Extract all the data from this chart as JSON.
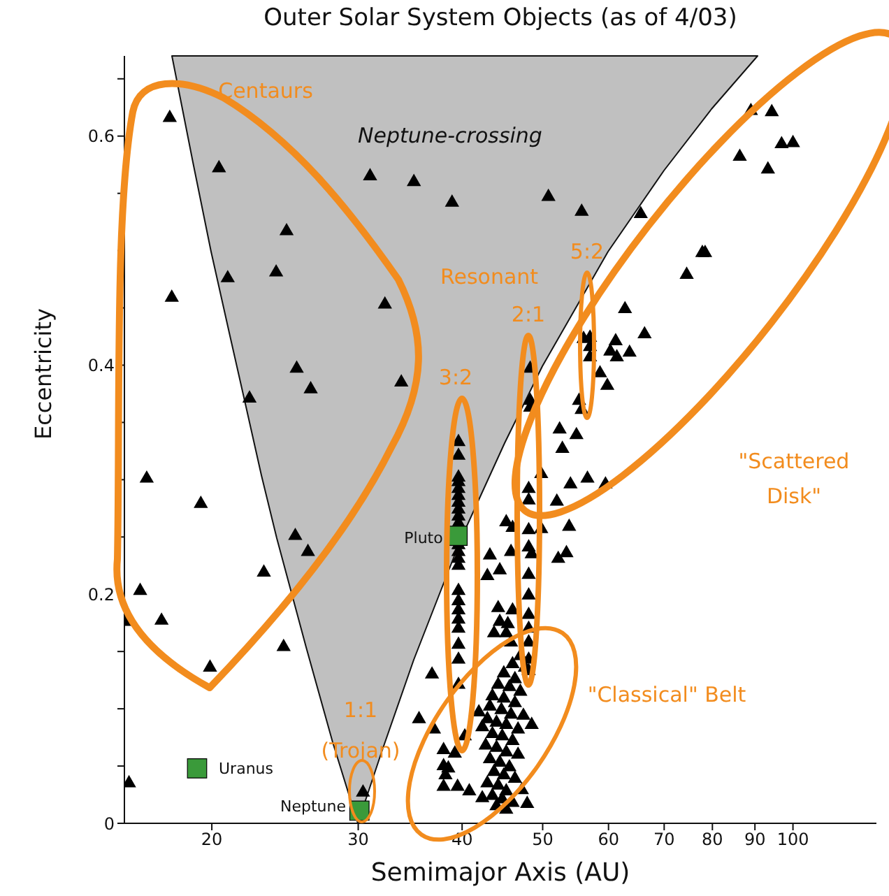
{
  "chart_data": {
    "type": "scatter",
    "title": "Outer Solar System Objects (as of 4/03)",
    "xlabel": "Semimajor Axis (AU)",
    "ylabel": "Eccentricity",
    "log": "x",
    "xlim": [
      15.7,
      126
    ],
    "xticks": [
      20,
      30,
      40,
      50,
      60,
      70,
      80,
      90,
      100
    ],
    "ylim": [
      0,
      0.67
    ],
    "yticks": [
      0,
      {
        "value": 0.05,
        "label": null
      },
      {
        "value": 0.1,
        "label": null
      },
      {
        "value": 0.15,
        "label": null
      },
      0.2,
      {
        "value": 0.25,
        "label": null
      },
      {
        "value": 0.3,
        "label": null
      },
      {
        "value": 0.35,
        "label": null
      },
      0.4,
      {
        "value": 0.45,
        "label": null
      },
      {
        "value": 0.5,
        "label": null
      },
      {
        "value": 0.55,
        "label": null
      },
      0.6,
      {
        "value": 0.65,
        "label": null
      }
    ],
    "grid": false,
    "legend": false,
    "series": [
      {
        "color": "#000000",
        "marker": "triangle",
        "x": [
          17.8,
          20.4,
          31.0,
          35.0,
          38.9,
          24.6,
          20.9,
          23.9,
          17.9,
          32.3,
          25.3,
          26.3,
          22.2,
          33.8,
          50.8,
          55.7,
          65.6,
          89.0,
          94.3,
          96.9,
          100,
          86.3,
          93.3,
          77.8,
          78.4,
          74.5,
          62.8,
          66.3,
          61.2,
          60.3,
          61.4,
          63.6,
          57.0,
          57.0,
          57.0,
          56.0,
          58.6,
          59.8,
          48.3,
          48.3,
          48.3,
          55.3,
          55.7,
          52.4,
          54.9,
          52.8,
          16.7,
          19.4,
          25.2,
          26.1,
          23.1,
          16.4,
          15.7,
          17.4,
          24.4,
          19.9,
          15.9,
          30.4,
          36.8,
          35.5,
          37.0,
          38.0,
          38.0,
          38.2,
          39.6,
          39.6,
          39.6,
          39.6,
          39.6,
          39.6,
          39.6,
          39.6,
          39.6,
          39.6,
          39.6,
          39.6,
          39.6,
          39.6,
          39.6,
          39.6,
          39.6,
          39.6,
          39.6,
          39.6,
          39.6,
          39.6,
          48.1,
          48.1,
          48.1,
          48.1,
          48.1,
          48.1,
          48.1,
          48.1,
          48.1,
          48.1,
          48.1,
          56.6,
          59.5,
          54.0,
          52.0,
          49.8,
          53.8,
          49.8,
          45.2,
          46.0,
          45.8,
          48.5,
          53.4,
          52.2,
          43.2,
          44.4,
          42.9,
          44.2,
          46.0,
          44.4,
          45.4,
          43.7,
          45.8,
          45.2,
          39.2,
          40.3,
          38.5,
          38.0,
          39.5,
          40.8,
          41.9,
          42.3,
          48.5,
          47.9,
          47.0,
          46.0,
          47.6,
          44.9,
          46.3,
          44.2,
          45.6,
          47.0,
          43.5,
          44.9,
          46.3,
          43.2,
          44.6,
          45.8,
          47.4,
          42.9,
          44.0,
          45.2,
          46.7,
          43.5,
          44.7,
          46.0,
          42.7,
          44.0,
          45.2,
          46.7,
          43.2,
          44.4,
          45.6,
          43.7,
          44.9,
          46.3,
          42.9,
          44.2,
          45.2,
          43.5,
          44.7,
          46.0,
          44.0,
          45.2,
          42.3,
          47.2
        ],
        "values": [
          0.616,
          0.572,
          0.565,
          0.56,
          0.542,
          0.517,
          0.476,
          0.481,
          0.459,
          0.453,
          0.397,
          0.379,
          0.371,
          0.385,
          0.547,
          0.534,
          0.532,
          0.622,
          0.621,
          0.593,
          0.594,
          0.582,
          0.571,
          0.498,
          0.498,
          0.479,
          0.449,
          0.427,
          0.421,
          0.412,
          0.407,
          0.411,
          0.424,
          0.416,
          0.407,
          0.423,
          0.393,
          0.382,
          0.397,
          0.369,
          0.363,
          0.369,
          0.361,
          0.344,
          0.339,
          0.327,
          0.301,
          0.279,
          0.251,
          0.237,
          0.219,
          0.203,
          0.176,
          0.177,
          0.154,
          0.136,
          0.035,
          0.027,
          0.13,
          0.091,
          0.082,
          0.064,
          0.05,
          0.042,
          0.333,
          0.321,
          0.302,
          0.298,
          0.292,
          0.286,
          0.28,
          0.274,
          0.268,
          0.262,
          0.243,
          0.237,
          0.231,
          0.225,
          0.203,
          0.194,
          0.186,
          0.178,
          0.17,
          0.156,
          0.143,
          0.121,
          0.292,
          0.282,
          0.256,
          0.241,
          0.217,
          0.199,
          0.182,
          0.17,
          0.158,
          0.143,
          0.133,
          0.301,
          0.296,
          0.296,
          0.281,
          0.305,
          0.259,
          0.257,
          0.263,
          0.258,
          0.237,
          0.235,
          0.236,
          0.231,
          0.234,
          0.221,
          0.216,
          0.188,
          0.186,
          0.176,
          0.174,
          0.166,
          0.158,
          0.166,
          0.061,
          0.076,
          0.048,
          0.032,
          0.032,
          0.028,
          0.097,
          0.084,
          0.086,
          0.017,
          0.146,
          0.139,
          0.136,
          0.131,
          0.126,
          0.121,
          0.119,
          0.115,
          0.111,
          0.109,
          0.105,
          0.102,
          0.099,
          0.095,
          0.094,
          0.091,
          0.088,
          0.086,
          0.082,
          0.078,
          0.076,
          0.072,
          0.068,
          0.066,
          0.062,
          0.06,
          0.056,
          0.053,
          0.049,
          0.045,
          0.042,
          0.039,
          0.035,
          0.033,
          0.028,
          0.024,
          0.021,
          0.018,
          0.015,
          0.012,
          0.022,
          0.029
        ]
      },
      {
        "color": "#3a9a3a",
        "marker": "square",
        "x": [
          19.2,
          30.1,
          39.5
        ],
        "values": [
          0.048,
          0.011,
          0.251
        ]
      }
    ],
    "annotations": [
      "Neptune-crossing",
      "Uranus",
      "Neptune",
      "Pluto",
      "Centaurs",
      "Resonant",
      "5:2",
      "2:1",
      "3:2",
      "1:1",
      "(Trojan)",
      "\"Scattered",
      "Disk\"",
      "\"Classical\" Belt"
    ]
  }
}
